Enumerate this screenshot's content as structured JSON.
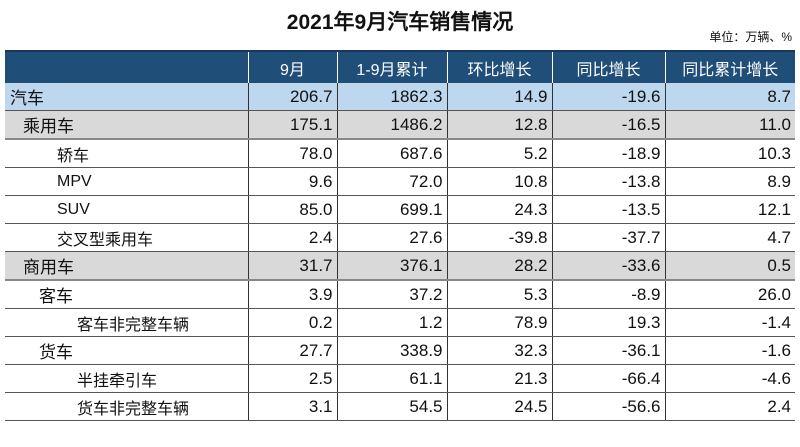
{
  "title": "2021年9月汽车销售情况",
  "unit": "单位：万辆、%",
  "colors": {
    "header_bg": "#1f4e79",
    "total_row_bg": "#bdd7ee",
    "category_row_bg": "#d9d9d9"
  },
  "table": {
    "headers": [
      "",
      "9月",
      "1-9月累计",
      "环比增长",
      "同比增长",
      "同比累计增长"
    ],
    "rows": [
      {
        "level": 0,
        "cells": [
          "汽车",
          "206.7",
          "1862.3",
          "14.9",
          "-19.6",
          "8.7"
        ]
      },
      {
        "level": 1,
        "cells": [
          "乘用车",
          "175.1",
          "1486.2",
          "12.8",
          "-16.5",
          "11.0"
        ]
      },
      {
        "level": 3,
        "cells": [
          "轿车",
          "78.0",
          "687.6",
          "5.2",
          "-18.9",
          "10.3"
        ]
      },
      {
        "level": 3,
        "cells": [
          "MPV",
          "9.6",
          "72.0",
          "10.8",
          "-13.8",
          "8.9"
        ]
      },
      {
        "level": 3,
        "cells": [
          "SUV",
          "85.0",
          "699.1",
          "24.3",
          "-13.5",
          "12.1"
        ]
      },
      {
        "level": 3,
        "cells": [
          "交叉型乘用车",
          "2.4",
          "27.6",
          "-39.8",
          "-37.7",
          "4.7"
        ]
      },
      {
        "level": 1,
        "cells": [
          "商用车",
          "31.7",
          "376.1",
          "28.2",
          "-33.6",
          "0.5"
        ]
      },
      {
        "level": 2,
        "cells": [
          "客车",
          "3.9",
          "37.2",
          "5.3",
          "-8.9",
          "26.0"
        ]
      },
      {
        "level": 4,
        "cells": [
          "客车非完整车辆",
          "0.2",
          "1.2",
          "78.9",
          "19.3",
          "-1.4"
        ]
      },
      {
        "level": 2,
        "cells": [
          "货车",
          "27.7",
          "338.9",
          "32.3",
          "-36.1",
          "-1.6"
        ]
      },
      {
        "level": 4,
        "cells": [
          "半挂牵引车",
          "2.5",
          "61.1",
          "21.3",
          "-66.4",
          "-4.6"
        ]
      },
      {
        "level": 4,
        "cells": [
          "货车非完整车辆",
          "3.1",
          "54.5",
          "24.5",
          "-56.6",
          "2.4"
        ]
      }
    ]
  }
}
